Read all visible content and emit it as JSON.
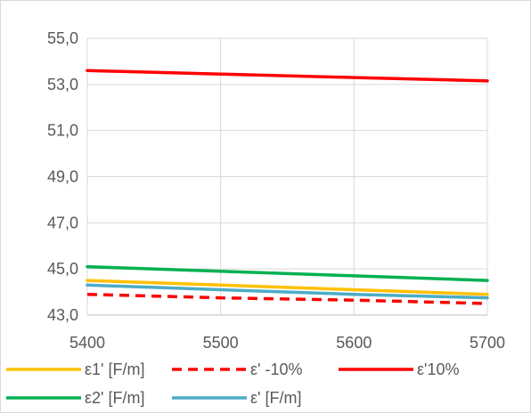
{
  "chart_data": {
    "type": "line",
    "x": [
      5400,
      5500,
      5600,
      5700
    ],
    "xlim": [
      5400,
      5700
    ],
    "ylim": [
      43.0,
      55.0
    ],
    "x_ticks": [
      "5400",
      "5500",
      "5600",
      "5700"
    ],
    "y_ticks": [
      "43,0",
      "45,0",
      "47,0",
      "49,0",
      "51,0",
      "53,0",
      "55,0"
    ],
    "grid": true,
    "legend_position": "bottom",
    "series": [
      {
        "name": "ε1' [F/m]",
        "color": "#FFC000",
        "dash": "solid",
        "values": [
          44.5,
          44.3,
          44.1,
          43.9
        ]
      },
      {
        "name": "ε' -10%",
        "color": "#FF0000",
        "dash": "dashed",
        "values": [
          43.9,
          43.75,
          43.65,
          43.5
        ]
      },
      {
        "name": "ε'10%",
        "color": "#FF0000",
        "dash": "solid",
        "values": [
          53.6,
          53.45,
          53.3,
          53.15
        ]
      },
      {
        "name": "ε2' [F/m]",
        "color": "#00B050",
        "dash": "solid",
        "values": [
          45.1,
          44.9,
          44.7,
          44.5
        ]
      },
      {
        "name": "ε' [F/m]",
        "color": "#4BACC6",
        "dash": "solid",
        "values": [
          44.3,
          44.1,
          43.9,
          43.75
        ]
      }
    ]
  }
}
